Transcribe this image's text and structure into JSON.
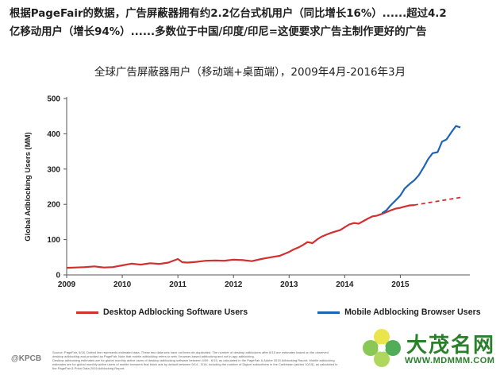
{
  "headline": {
    "line1": "根据PageFair的数据，广告屏蔽器拥有约2.2亿台式机用户（同比增长16%）......超过4.2",
    "line2": "亿移动用户（增长94%）......多数位于中国/印度/印尼=这便要求广告主制作更好的广告"
  },
  "chart_data": {
    "type": "line",
    "title": "全球广告屏蔽器用户（移动端+桌面端），2009年4月-2016年3月",
    "ylabel": "Global Adblocking Users (MM)",
    "xlabel": "",
    "xlim": [
      2009,
      2016.25
    ],
    "ylim": [
      0,
      500
    ],
    "yticks": [
      0,
      100,
      200,
      300,
      400,
      500
    ],
    "xticks": [
      2009,
      2010,
      2011,
      2012,
      2013,
      2014,
      2015
    ],
    "grid": false,
    "legend_position": "bottom",
    "series": [
      {
        "name": "Desktop Adblocking Software Users",
        "color": "#d32f2f",
        "style": "solid",
        "x": [
          2009.0,
          2009.17,
          2009.33,
          2009.5,
          2009.67,
          2009.83,
          2010.0,
          2010.17,
          2010.33,
          2010.5,
          2010.67,
          2010.83,
          2011.0,
          2011.08,
          2011.17,
          2011.33,
          2011.5,
          2011.67,
          2011.83,
          2012.0,
          2012.17,
          2012.33,
          2012.5,
          2012.67,
          2012.83,
          2013.0,
          2013.08,
          2013.17,
          2013.25,
          2013.33,
          2013.42,
          2013.5,
          2013.58,
          2013.67,
          2013.75,
          2013.83,
          2013.92,
          2014.0,
          2014.08,
          2014.17,
          2014.25,
          2014.33,
          2014.42,
          2014.5,
          2014.58,
          2014.67,
          2014.75,
          2014.83,
          2014.92,
          2015.0,
          2015.08,
          2015.17,
          2015.25
        ],
        "y": [
          20,
          21,
          22,
          24,
          21,
          22,
          27,
          32,
          29,
          33,
          31,
          35,
          45,
          36,
          35,
          37,
          40,
          41,
          40,
          43,
          42,
          39,
          45,
          50,
          54,
          65,
          72,
          78,
          85,
          93,
          90,
          100,
          108,
          114,
          119,
          123,
          127,
          135,
          143,
          147,
          145,
          152,
          160,
          166,
          168,
          173,
          178,
          183,
          188,
          190,
          194,
          197,
          198
        ],
        "projection": {
          "style": "dashed",
          "x": [
            2015.25,
            2016.1
          ],
          "y": [
            198,
            220
          ]
        }
      },
      {
        "name": "Mobile Adblocking Browser Users",
        "color": "#1f63b5",
        "style": "solid",
        "x": [
          2014.67,
          2014.75,
          2014.83,
          2014.92,
          2015.0,
          2015.08,
          2015.17,
          2015.25,
          2015.33,
          2015.42,
          2015.5,
          2015.58,
          2015.67,
          2015.75,
          2015.83,
          2015.92,
          2016.0,
          2016.08
        ],
        "y": [
          175,
          183,
          198,
          212,
          225,
          245,
          258,
          268,
          282,
          305,
          328,
          345,
          348,
          378,
          384,
          405,
          422,
          418
        ]
      }
    ]
  },
  "source_lines": [
    "Source: PageFair, 5/16. Dotted line represents estimated data. These two data sets have not been de-duplicated. The number of desktop adblockers after 6/15 are estimates based on the observed",
    "desktop adblocking and provided by PageFair. Note that mobile adblocking refers to web / browser-based adblocking and not in-app adblocking.",
    "Desktop adblocking estimates are for global monthly active users of desktop adblocking software between 4/09 - 6/15, as calculated in the PageFair & Adobe 2015 Adblocking Report. Mobile adblocking",
    "estimates are for global monthly active users of mobile browsers that block ads by default between 9/14 - 3/16, including the number of Digicel subscribers in the Caribbean (added 10/15), as calculated in",
    "the PageFair & Priori Data 2016 Adblocking Report."
  ],
  "brand": "@KPCB",
  "watermark": {
    "name": "大茂名网",
    "url": "WWW.MDMMM.COM"
  }
}
